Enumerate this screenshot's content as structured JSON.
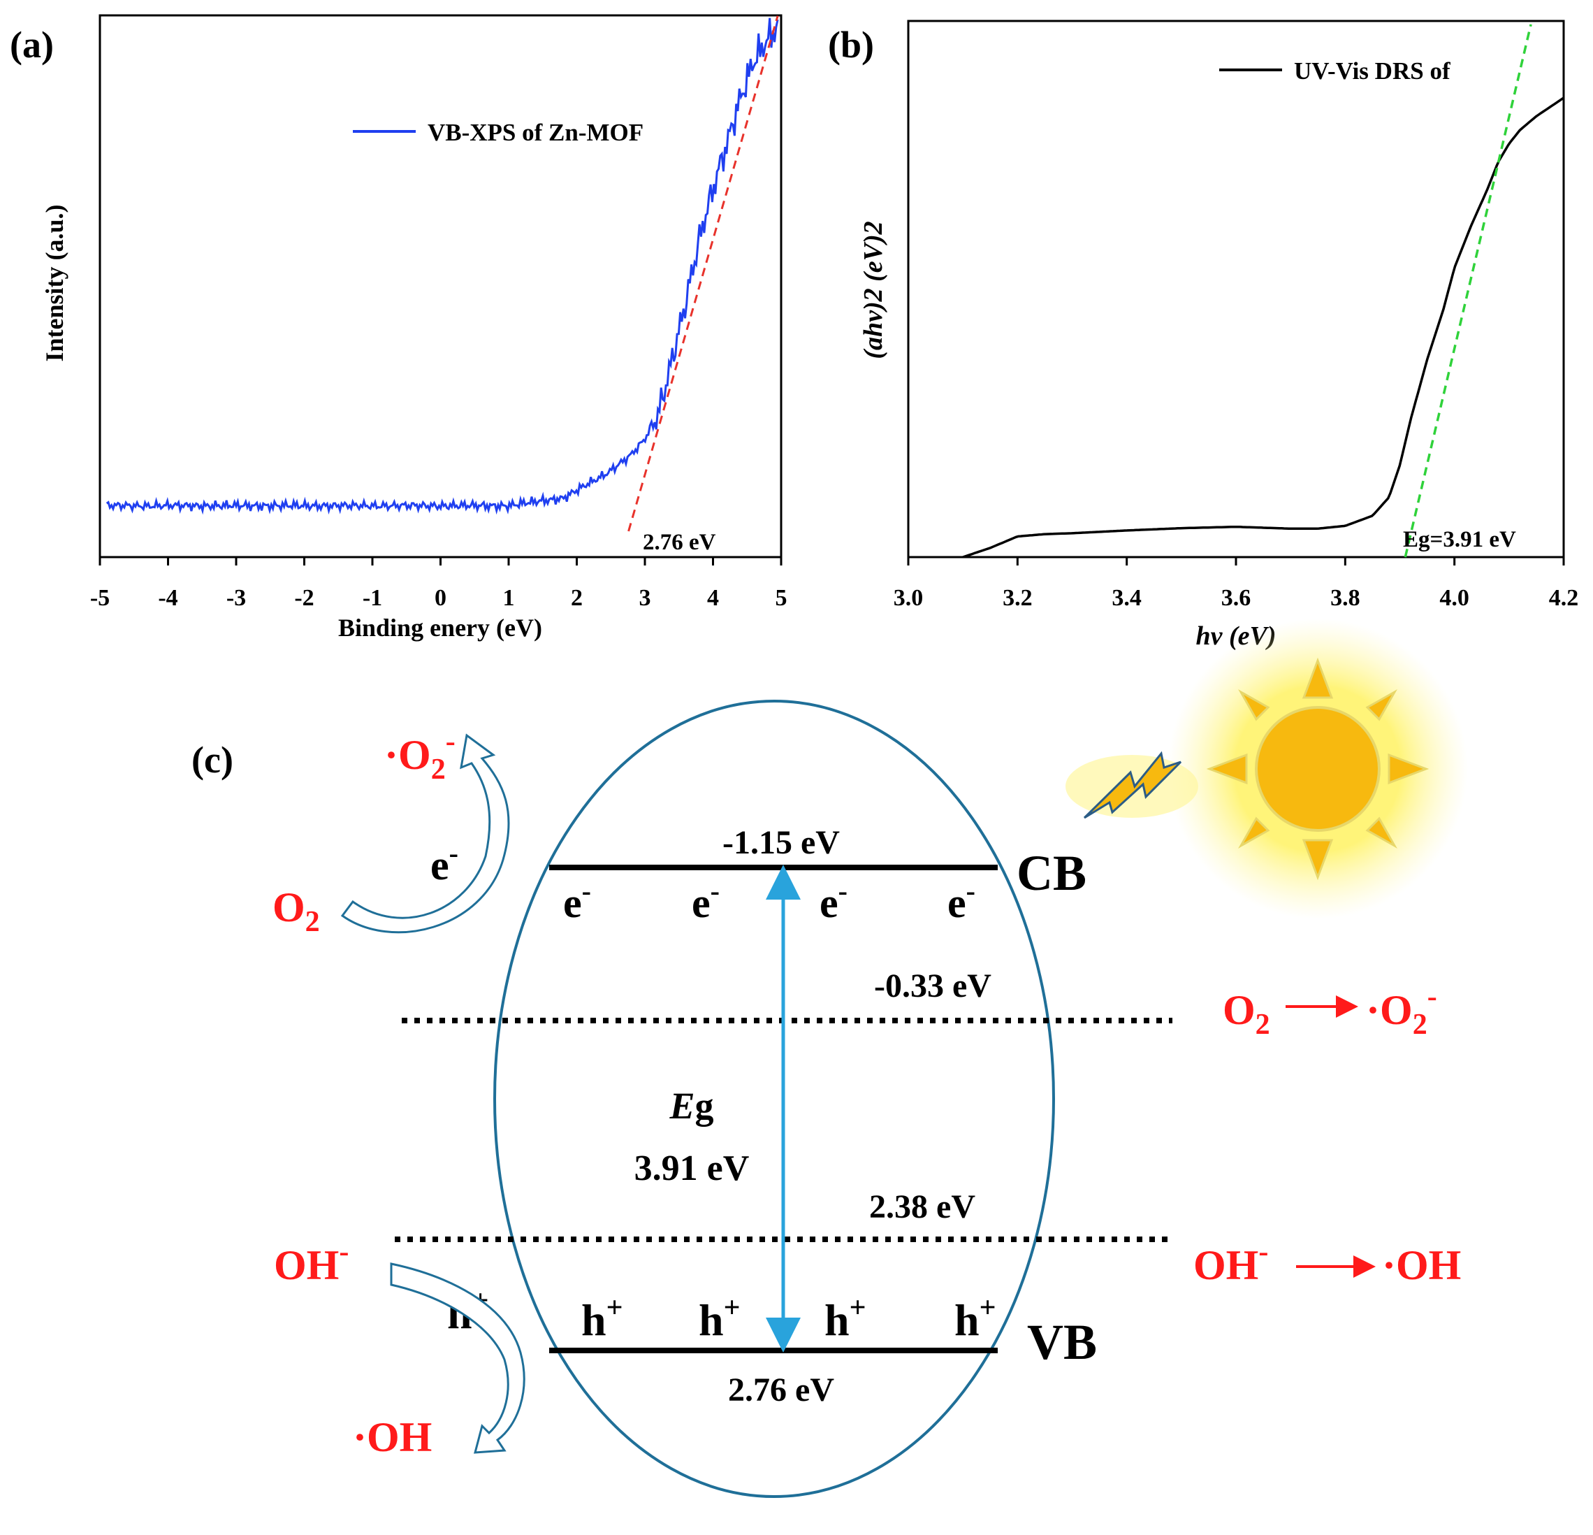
{
  "panels": {
    "a": "(a)",
    "b": "(b)",
    "c": "(c)"
  },
  "colors": {
    "xps_line": "#1f3ff0",
    "xps_fit": "#e8322b",
    "drs_line": "#000000",
    "drs_fit": "#2fd23a",
    "arrow_blue": "#29a3dc",
    "ellipse": "#1f6f98",
    "species_red": "#ff1a1a",
    "sun": "#f7b90f"
  },
  "chart_data": [
    {
      "id": "a",
      "type": "line",
      "title": "",
      "xlabel": "Binding enery (eV)",
      "ylabel": "Intensity (a.u.)",
      "xlim": [
        -5,
        5
      ],
      "ylim": [
        0,
        100
      ],
      "xticks": [
        "-5",
        "-4",
        "-3",
        "-2",
        "-1",
        "0",
        "1",
        "2",
        "3",
        "4",
        "5"
      ],
      "legend": "VB-XPS of Zn-MOF",
      "legend_position": "top-center",
      "annotation": "2.76 eV",
      "series": [
        {
          "name": "VB-XPS of Zn-MOF",
          "x": [
            -4.9,
            -4.5,
            -4.0,
            -3.5,
            -3.0,
            -2.5,
            -2.0,
            -1.5,
            -1.0,
            -0.5,
            0.0,
            0.5,
            1.0,
            1.5,
            1.8,
            2.0,
            2.2,
            2.4,
            2.6,
            2.8,
            3.0,
            3.2,
            3.4,
            3.6,
            3.8,
            4.0,
            4.2,
            4.4,
            4.6,
            4.8,
            4.95
          ],
          "y": [
            5,
            5,
            5,
            5,
            5,
            5,
            5,
            5,
            5,
            5,
            5,
            5,
            5,
            6,
            6.5,
            8,
            9.5,
            11,
            13,
            15,
            18,
            23,
            34,
            45,
            57,
            67,
            76,
            85,
            92,
            96,
            99
          ]
        },
        {
          "name": "linear fit (red dashed)",
          "x": [
            2.76,
            4.95
          ],
          "y": [
            0,
            101
          ]
        }
      ]
    },
    {
      "id": "b",
      "type": "line",
      "title": "",
      "xlabel": "hv (eV)",
      "ylabel": "(ahv)2 (eV)2",
      "xlim": [
        3.0,
        4.2
      ],
      "ylim": [
        0,
        100
      ],
      "xticks": [
        "3.0",
        "3.2",
        "3.4",
        "3.6",
        "3.8",
        "4.0",
        "4.2"
      ],
      "legend": "UV-Vis DRS of",
      "legend_position": "top-right",
      "annotation": "Eg=3.91 eV",
      "series": [
        {
          "name": "UV-Vis DRS of",
          "x": [
            3.1,
            3.15,
            3.2,
            3.25,
            3.3,
            3.4,
            3.5,
            3.6,
            3.7,
            3.75,
            3.8,
            3.85,
            3.88,
            3.9,
            3.92,
            3.95,
            3.98,
            4.0,
            4.03,
            4.06,
            4.08,
            4.1,
            4.12,
            4.15,
            4.2
          ],
          "y": [
            0,
            2,
            4.5,
            5,
            5.2,
            5.8,
            6.3,
            6.6,
            6.2,
            6.2,
            6.8,
            9,
            13,
            20,
            30,
            43,
            54,
            63,
            72,
            80,
            86,
            90,
            93,
            96,
            100
          ]
        },
        {
          "name": "linear fit (green dashed)",
          "x": [
            3.91,
            4.14
          ],
          "y": [
            0,
            116
          ]
        }
      ]
    }
  ],
  "diagram": {
    "cb_energy": "-1.15 eV",
    "vb_energy": "2.76 eV",
    "o2_potential": "-0.33 eV",
    "oh_potential": "2.38 eV",
    "eg_symbol": "E",
    "eg_sub": "g",
    "eg_value": "3.91 eV",
    "cb_label": "CB",
    "vb_label": "VB",
    "electron": "e",
    "electron_sup": "-",
    "hole": "h",
    "hole_sup": "+",
    "left_top_product": "·O",
    "left_top_product_sub": "2",
    "left_top_product_sup": "-",
    "left_reactant": "O",
    "left_reactant_sub": "2",
    "left_oh": "OH",
    "left_oh_sup": "-",
    "left_oh_product": "·OH",
    "right_o2_reactant": "O",
    "right_o2_reactant_sub": "2",
    "right_o2_product": "·O",
    "right_o2_product_sub": "2",
    "right_o2_product_sup": "-",
    "right_oh_reactant": "OH",
    "right_oh_reactant_sup": "-",
    "right_oh_product": "·OH"
  }
}
